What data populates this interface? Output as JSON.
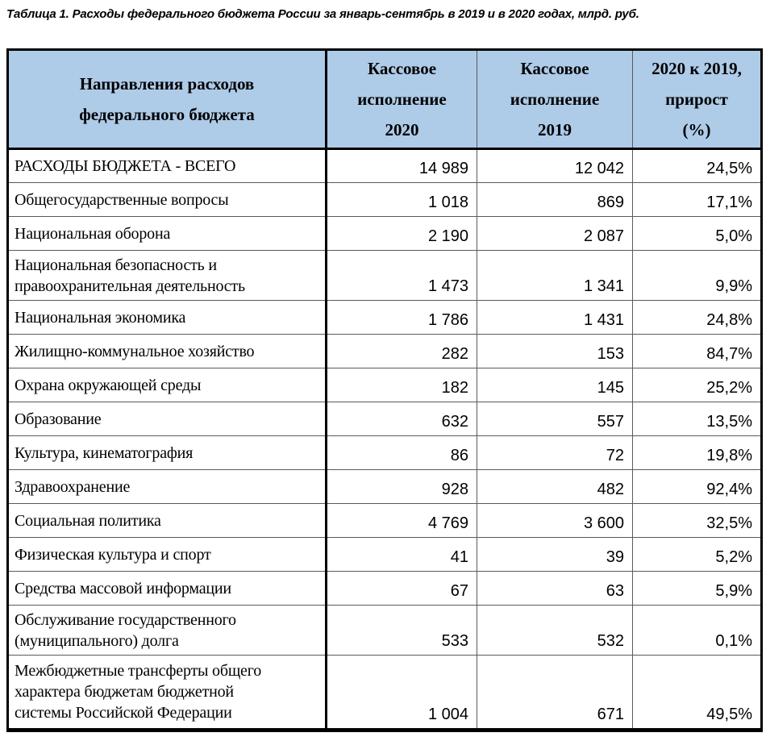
{
  "caption": "Таблица 1. Расходы федерального бюджета России за январь-сентябрь в 2019 и в 2020 годах, млрд. руб.",
  "colors": {
    "header_bg": "#AECBE8",
    "grid_thin": "#5a5a5a",
    "grid_thick": "#000000",
    "text": "#000000"
  },
  "table": {
    "headers": {
      "directions": "Направления расходов\nфедерального бюджета",
      "exec2020": "Кассовое\nисполнение\n2020",
      "exec2019": "Кассовое\nисполнение\n2019",
      "growth": "2020 к 2019,\nприрост\n(%)"
    },
    "rows": [
      {
        "label": "РАСХОДЫ БЮДЖЕТА - ВСЕГО",
        "v2020": "14 989",
        "v2019": "12 042",
        "growth": "24,5%"
      },
      {
        "label": "Общегосударственные вопросы",
        "v2020": "1 018",
        "v2019": "869",
        "growth": "17,1%"
      },
      {
        "label": "Национальная оборона",
        "v2020": "2 190",
        "v2019": "2 087",
        "growth": "5,0%"
      },
      {
        "label": "Национальная безопасность и\nправоохранительная деятельность",
        "v2020": "1 473",
        "v2019": "1 341",
        "growth": "9,9%"
      },
      {
        "label": "Национальная экономика",
        "v2020": "1 786",
        "v2019": "1 431",
        "growth": "24,8%"
      },
      {
        "label": "Жилищно-коммунальное хозяйство",
        "v2020": "282",
        "v2019": "153",
        "growth": "84,7%"
      },
      {
        "label": "Охрана окружающей среды",
        "v2020": "182",
        "v2019": "145",
        "growth": "25,2%"
      },
      {
        "label": "Образование",
        "v2020": "632",
        "v2019": "557",
        "growth": "13,5%"
      },
      {
        "label": "Культура, кинематография",
        "v2020": "86",
        "v2019": "72",
        "growth": "19,8%"
      },
      {
        "label": "Здравоохранение",
        "v2020": "928",
        "v2019": "482",
        "growth": "92,4%"
      },
      {
        "label": "Социальная политика",
        "v2020": "4 769",
        "v2019": "3 600",
        "growth": "32,5%"
      },
      {
        "label": "Физическая культура и спорт",
        "v2020": "41",
        "v2019": "39",
        "growth": "5,2%"
      },
      {
        "label": "Средства массовой информации",
        "v2020": "67",
        "v2019": "63",
        "growth": "5,9%"
      },
      {
        "label": "Обслуживание государственного\n(муниципального) долга",
        "v2020": "533",
        "v2019": "532",
        "growth": "0,1%"
      },
      {
        "label": "Межбюджетные трансферты общего\nхарактера бюджетам бюджетной\nсистемы Российской Федерации",
        "v2020": "1 004",
        "v2019": "671",
        "growth": "49,5%"
      }
    ]
  }
}
